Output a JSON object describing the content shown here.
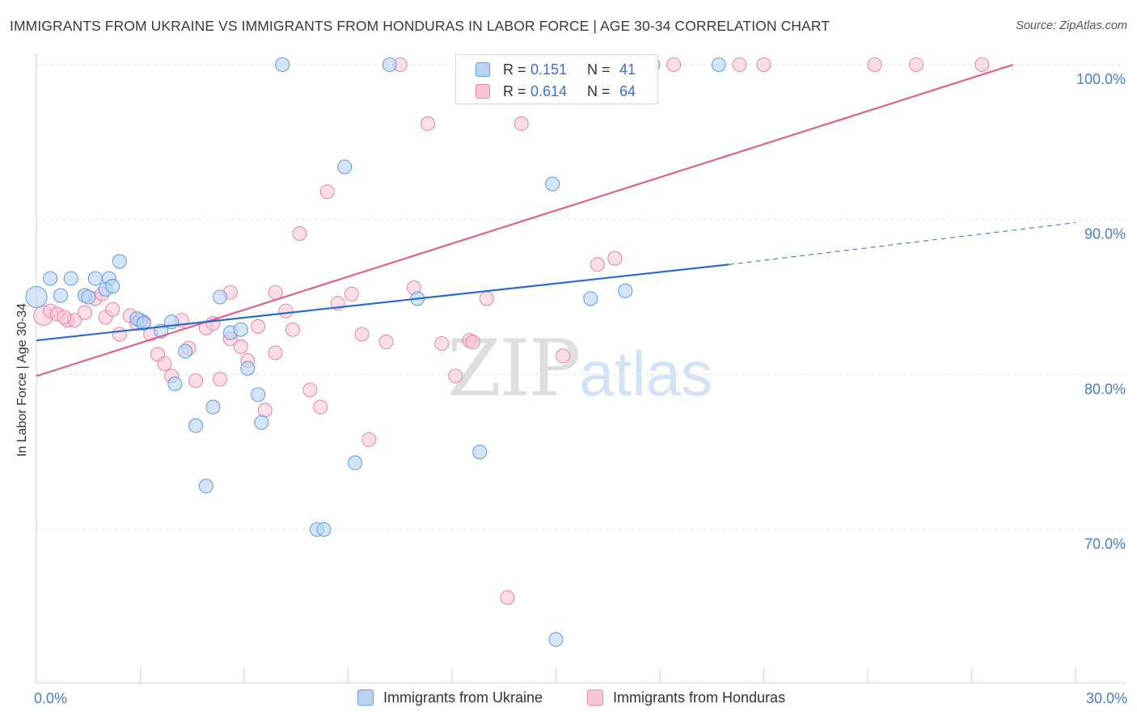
{
  "header": {
    "title": "IMMIGRANTS FROM UKRAINE VS IMMIGRANTS FROM HONDURAS IN LABOR FORCE | AGE 30-34 CORRELATION CHART",
    "source": "Source: ZipAtlas.com"
  },
  "watermark": {
    "zip": "ZIP",
    "atlas": "atlas"
  },
  "stats": {
    "ukraine": {
      "r_label": "R =",
      "r_value": "0.151",
      "n_label": "N =",
      "n_value": "41"
    },
    "honduras": {
      "r_label": "R =",
      "r_value": "0.614",
      "n_label": "N =",
      "n_value": "64"
    }
  },
  "legend": {
    "ukraine": "Immigrants from Ukraine",
    "honduras": "Immigrants from Honduras"
  },
  "colors": {
    "ukraine_fill": "#b8d3f2",
    "ukraine_stroke": "#6a9fe0",
    "ukraine_line": "#2b6bc9",
    "honduras_fill": "#f7c5d5",
    "honduras_stroke": "#e98aaa",
    "honduras_line": "#e0608a",
    "tick_text": "#4a7cc9",
    "grid": "#e2e2e2"
  },
  "chart_data": {
    "type": "scatter",
    "title": "IMMIGRANTS FROM UKRAINE VS IMMIGRANTS FROM HONDURAS IN LABOR FORCE | AGE 30-34 CORRELATION CHART",
    "xlabel": "",
    "ylabel": "In Labor Force | Age 30-34",
    "xlim": [
      0,
      30
    ],
    "ylim": [
      61,
      101
    ],
    "x_tick_labels": [
      "0.0%",
      "30.0%"
    ],
    "y_ticks": [
      70,
      80,
      90,
      100
    ],
    "y_tick_labels": [
      "70.0%",
      "80.0%",
      "90.0%",
      "100.0%"
    ],
    "grid": true,
    "legend_position": "bottom",
    "series": [
      {
        "name": "Immigrants from Ukraine",
        "points": [
          [
            0.0,
            85.0
          ],
          [
            0.4,
            86.2
          ],
          [
            0.7,
            85.1
          ],
          [
            1.0,
            86.2
          ],
          [
            1.4,
            85.1
          ],
          [
            1.7,
            86.2
          ],
          [
            2.1,
            86.2
          ],
          [
            2.0,
            85.5
          ],
          [
            2.2,
            85.7
          ],
          [
            2.4,
            87.3
          ],
          [
            3.0,
            83.5
          ],
          [
            3.6,
            82.8
          ],
          [
            3.9,
            83.4
          ],
          [
            4.0,
            79.4
          ],
          [
            4.3,
            81.5
          ],
          [
            4.6,
            76.7
          ],
          [
            4.9,
            72.8
          ],
          [
            5.1,
            77.9
          ],
          [
            5.3,
            85.0
          ],
          [
            5.6,
            82.7
          ],
          [
            5.9,
            82.9
          ],
          [
            6.1,
            80.4
          ],
          [
            6.4,
            78.7
          ],
          [
            6.5,
            76.9
          ],
          [
            7.1,
            100.0
          ],
          [
            8.1,
            70.0
          ],
          [
            8.3,
            70.0
          ],
          [
            8.9,
            93.4
          ],
          [
            9.2,
            74.3
          ],
          [
            10.2,
            100.0
          ],
          [
            11.0,
            84.9
          ],
          [
            12.8,
            75.0
          ],
          [
            15.0,
            62.9
          ],
          [
            16.0,
            84.9
          ],
          [
            14.9,
            92.3
          ],
          [
            17.0,
            85.4
          ],
          [
            17.8,
            100.0
          ],
          [
            19.7,
            100.0
          ],
          [
            1.5,
            85.0
          ],
          [
            2.9,
            83.6
          ],
          [
            3.1,
            83.3
          ]
        ],
        "trend": {
          "x": [
            0,
            20.0
          ],
          "y": [
            82.2,
            87.1
          ]
        },
        "trend_extended": {
          "x": [
            20.0,
            30.0
          ],
          "y": [
            87.1,
            89.8
          ]
        }
      },
      {
        "name": "Immigrants from Honduras",
        "points": [
          [
            0.2,
            83.8
          ],
          [
            0.4,
            84.1
          ],
          [
            0.6,
            83.9
          ],
          [
            0.9,
            83.5
          ],
          [
            1.1,
            83.5
          ],
          [
            1.4,
            84.0
          ],
          [
            1.7,
            84.9
          ],
          [
            2.0,
            83.7
          ],
          [
            2.2,
            84.2
          ],
          [
            2.4,
            82.6
          ],
          [
            2.7,
            83.8
          ],
          [
            2.9,
            83.3
          ],
          [
            3.1,
            83.4
          ],
          [
            3.3,
            82.6
          ],
          [
            3.5,
            81.3
          ],
          [
            3.9,
            79.9
          ],
          [
            4.2,
            83.5
          ],
          [
            4.4,
            81.7
          ],
          [
            4.6,
            79.6
          ],
          [
            4.9,
            83.0
          ],
          [
            5.1,
            83.3
          ],
          [
            5.3,
            79.7
          ],
          [
            5.6,
            85.3
          ],
          [
            5.9,
            81.8
          ],
          [
            6.1,
            80.9
          ],
          [
            6.4,
            83.1
          ],
          [
            6.6,
            77.7
          ],
          [
            6.9,
            81.4
          ],
          [
            7.2,
            84.1
          ],
          [
            7.4,
            82.9
          ],
          [
            7.6,
            89.1
          ],
          [
            7.9,
            79.0
          ],
          [
            8.2,
            77.9
          ],
          [
            8.4,
            91.8
          ],
          [
            8.7,
            84.6
          ],
          [
            9.1,
            85.2
          ],
          [
            9.4,
            82.6
          ],
          [
            9.6,
            75.8
          ],
          [
            10.1,
            82.1
          ],
          [
            10.5,
            100.0
          ],
          [
            10.9,
            85.6
          ],
          [
            11.3,
            96.2
          ],
          [
            11.7,
            82.0
          ],
          [
            12.1,
            79.9
          ],
          [
            12.5,
            82.2
          ],
          [
            13.0,
            84.9
          ],
          [
            13.6,
            65.6
          ],
          [
            14.0,
            96.2
          ],
          [
            15.2,
            81.2
          ],
          [
            16.2,
            87.1
          ],
          [
            16.7,
            87.5
          ],
          [
            17.0,
            100.0
          ],
          [
            18.4,
            100.0
          ],
          [
            20.3,
            100.0
          ],
          [
            21.0,
            100.0
          ],
          [
            24.2,
            100.0
          ],
          [
            25.4,
            100.0
          ],
          [
            27.3,
            100.0
          ],
          [
            6.9,
            85.3
          ],
          [
            5.6,
            82.3
          ],
          [
            3.7,
            80.7
          ],
          [
            1.9,
            85.2
          ],
          [
            0.8,
            83.7
          ],
          [
            12.6,
            82.1
          ]
        ],
        "trend": {
          "x": [
            0,
            28.2
          ],
          "y": [
            79.9,
            100.0
          ]
        }
      }
    ]
  }
}
